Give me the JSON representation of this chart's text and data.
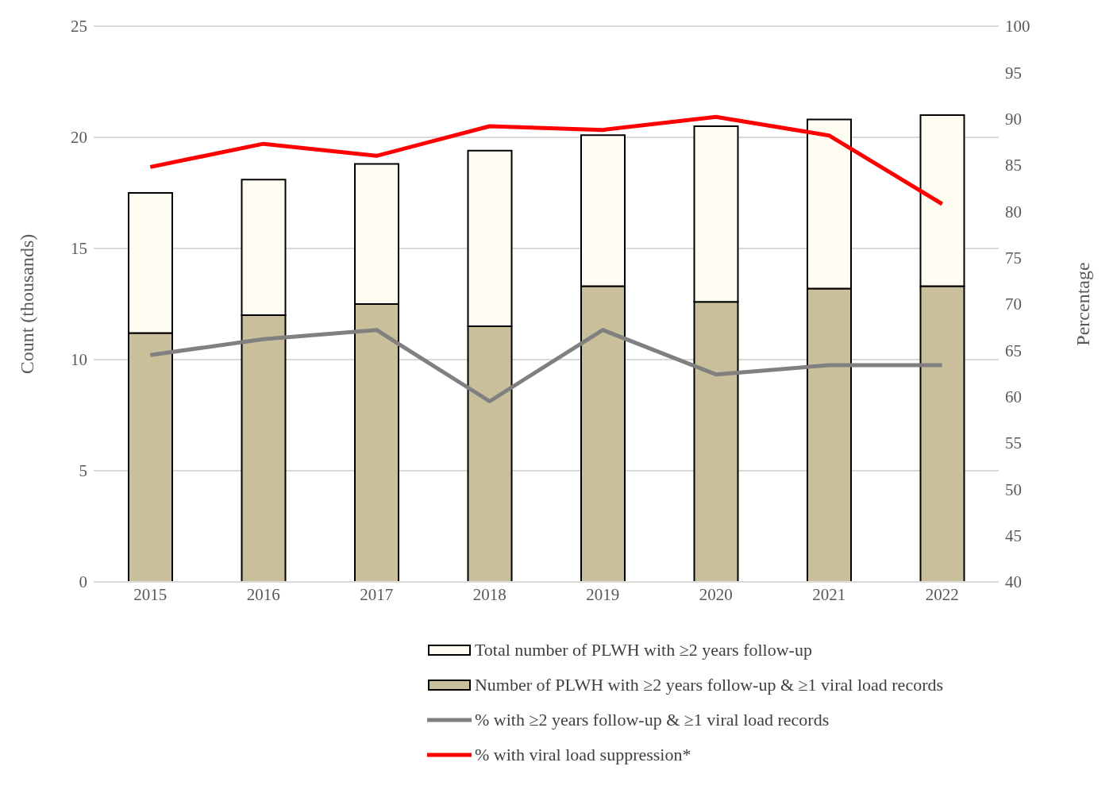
{
  "chart_data": {
    "type": "bar",
    "stacked": true,
    "categories": [
      "2015",
      "2016",
      "2017",
      "2018",
      "2019",
      "2020",
      "2021",
      "2022"
    ],
    "ylabel": "Count (thousands)",
    "y2label": "Percentage",
    "ylim": [
      0,
      25
    ],
    "yticks": [
      0,
      5,
      10,
      15,
      20,
      25
    ],
    "y2lim": [
      40,
      100
    ],
    "y2ticks": [
      40,
      45,
      50,
      55,
      60,
      65,
      70,
      75,
      80,
      85,
      90,
      95,
      100
    ],
    "grid": "y",
    "legend": "bottom",
    "series": [
      {
        "name": "Number of PLWH with ≥2 years follow-up & ≥1 viral load records",
        "color": "#c9c09b",
        "values": [
          11.2,
          12.0,
          12.5,
          11.5,
          13.3,
          12.6,
          13.2,
          13.3
        ]
      },
      {
        "name": "Total number of PLWH with ≥2 years follow-up",
        "color": "#fffdf2",
        "values": [
          6.3,
          6.1,
          6.3,
          7.9,
          6.8,
          7.9,
          7.6,
          7.7
        ]
      },
      {
        "name": "% with ≥2 years follow-up & ≥1 viral load records",
        "type": "line",
        "axis": "y2",
        "color": "#808080",
        "values": [
          64.5,
          66.2,
          67.2,
          59.5,
          67.2,
          62.4,
          63.4,
          63.4
        ]
      },
      {
        "name": "% with viral load suppression*",
        "type": "line",
        "axis": "y2",
        "color": "#ff0000",
        "values": [
          84.8,
          87.3,
          86.0,
          89.2,
          88.8,
          90.2,
          88.2,
          80.8
        ]
      }
    ]
  }
}
